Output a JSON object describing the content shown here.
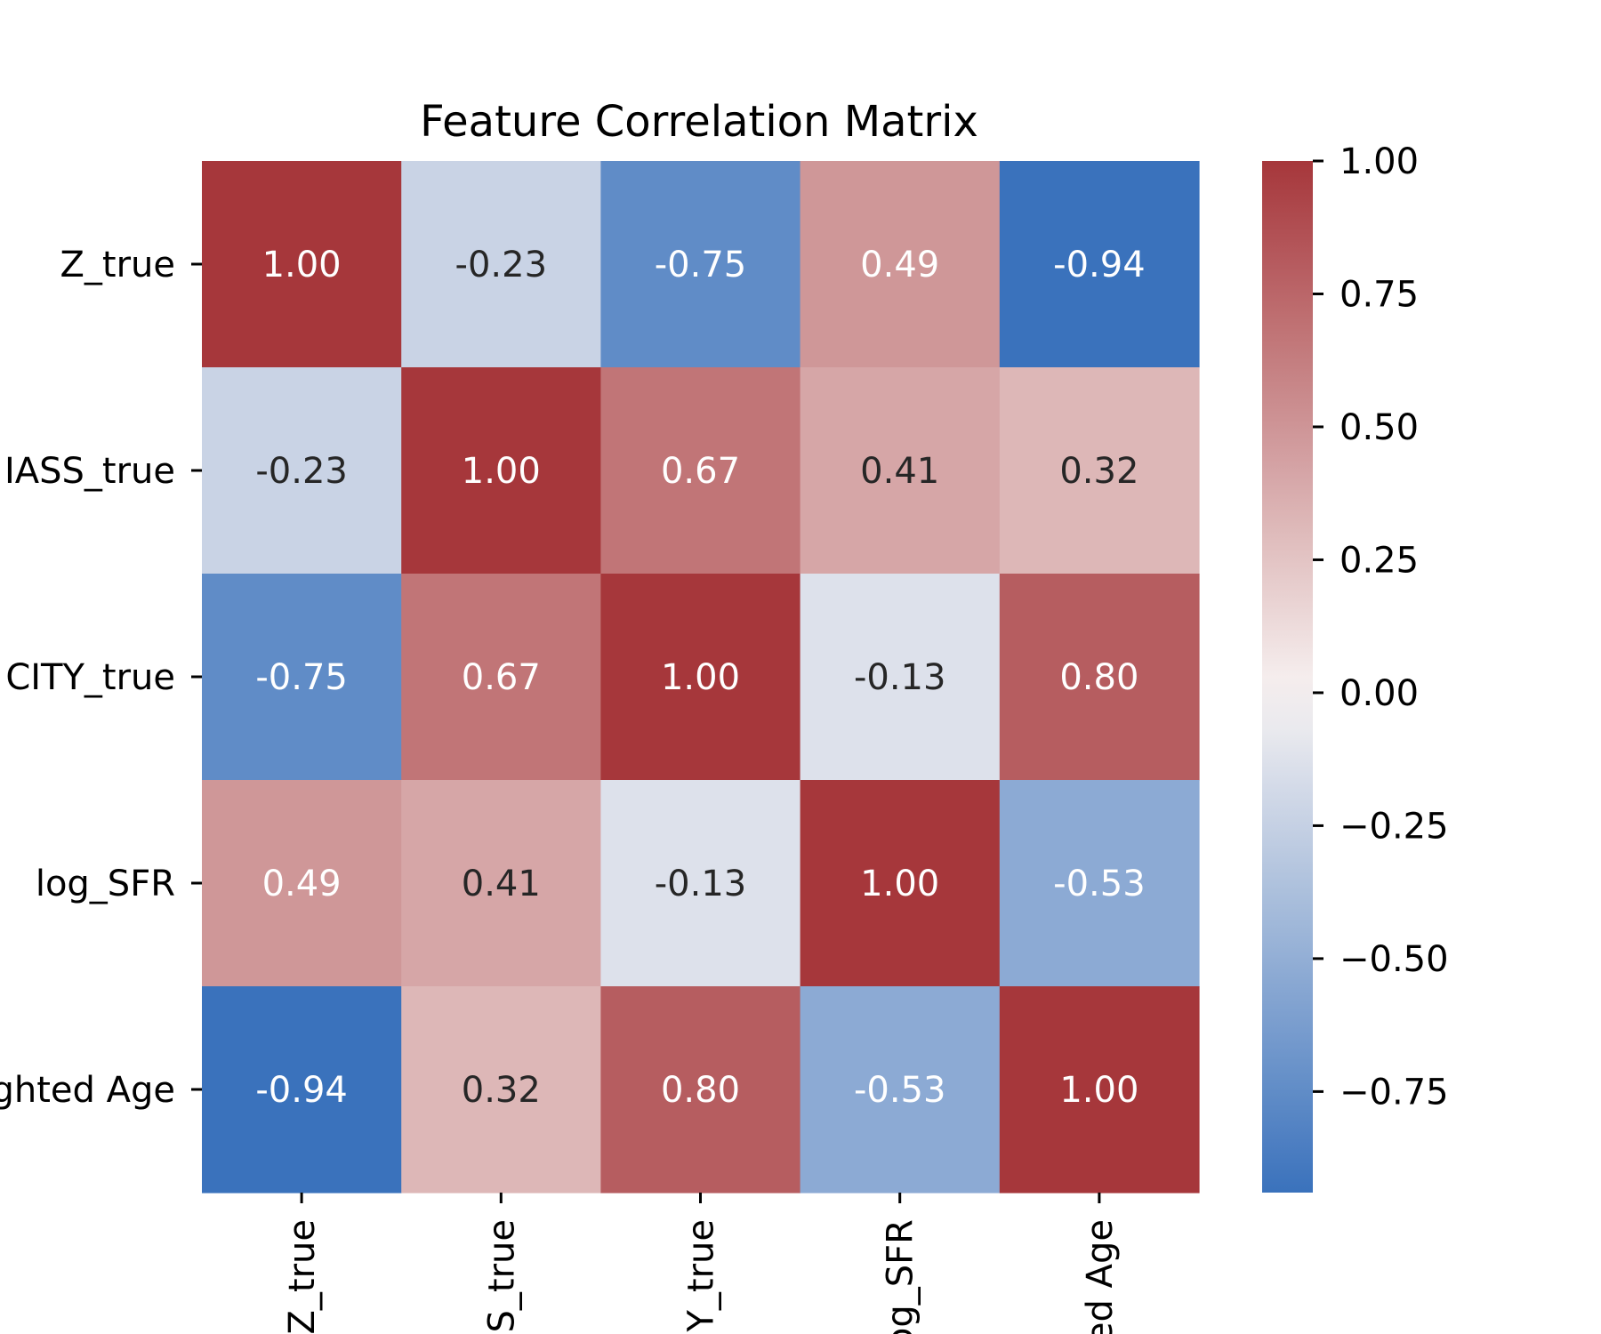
{
  "chart_data": {
    "type": "heatmap",
    "title": "Feature Correlation Matrix",
    "x_tick_labels": [
      "Z_true",
      "S_true",
      "Y_true",
      "og_SFR",
      "ed Age"
    ],
    "y_tick_labels": [
      "Z_true",
      "IASS_true",
      "CITY_true",
      "log_SFR",
      "ghted Age"
    ],
    "values": [
      [
        1.0,
        -0.23,
        -0.75,
        0.49,
        -0.94
      ],
      [
        -0.23,
        1.0,
        0.67,
        0.41,
        0.32
      ],
      [
        -0.75,
        0.67,
        1.0,
        -0.13,
        0.8
      ],
      [
        0.49,
        0.41,
        -0.13,
        1.0,
        -0.53
      ],
      [
        -0.94,
        0.32,
        0.8,
        -0.53,
        1.0
      ]
    ],
    "value_labels": [
      [
        "1.00",
        "-0.23",
        "-0.75",
        "0.49",
        "-0.94"
      ],
      [
        "-0.23",
        "1.00",
        "0.67",
        "0.41",
        "0.32"
      ],
      [
        "-0.75",
        "0.67",
        "1.00",
        "-0.13",
        "0.80"
      ],
      [
        "0.49",
        "0.41",
        "-0.13",
        "1.00",
        "-0.53"
      ],
      [
        "-0.94",
        "0.32",
        "0.80",
        "-0.53",
        "1.00"
      ]
    ],
    "colorbar": {
      "range": [
        -0.94,
        1.0
      ],
      "ticks": [
        1.0,
        0.75,
        0.5,
        0.25,
        0.0,
        -0.25,
        -0.5,
        -0.75
      ],
      "tick_labels": [
        "1.00",
        "0.75",
        "0.50",
        "0.25",
        "0.00",
        "−0.25",
        "−0.50",
        "−0.75"
      ]
    },
    "colormap": {
      "name": "vlag",
      "negative": "#3a72bc",
      "neutral": "#f7f3f2",
      "positive": "#a6373b"
    },
    "annotation_colors": {
      "light": "#ffffff",
      "dark": "#262626"
    },
    "grid": false
  }
}
